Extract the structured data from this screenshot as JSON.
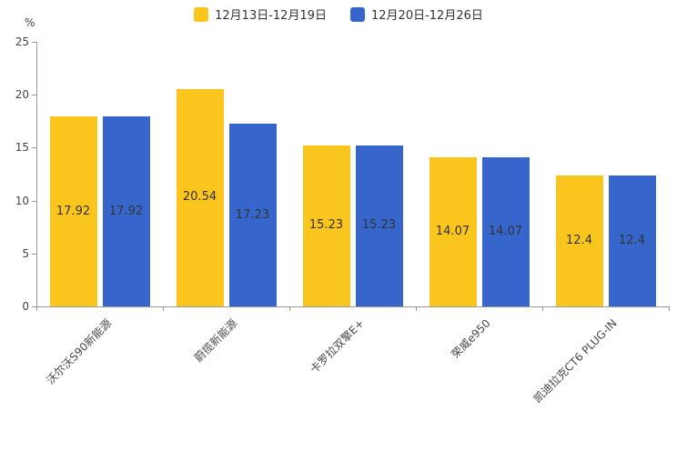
{
  "chart_data": {
    "type": "bar",
    "categories": [
      "沃尔沃S90新能源",
      "蔚揽新能源",
      "卡罗拉双擎E+",
      "荣威e950",
      "凯迪拉克CT6 PLUG-IN"
    ],
    "series": [
      {
        "name": "12月13日-12月19日",
        "color": "#FAC51C",
        "values": [
          17.92,
          20.54,
          15.23,
          14.07,
          12.4
        ]
      },
      {
        "name": "12月20日-12月26日",
        "color": "#3666CB",
        "values": [
          17.92,
          17.23,
          15.23,
          14.07,
          12.4
        ]
      }
    ],
    "title": "",
    "xlabel": "",
    "ylabel": "%",
    "ylim": [
      0,
      25
    ],
    "yticks": [
      0,
      5,
      10,
      15,
      20,
      25
    ],
    "grid": false,
    "legend_position": "top",
    "value_labels": true
  }
}
